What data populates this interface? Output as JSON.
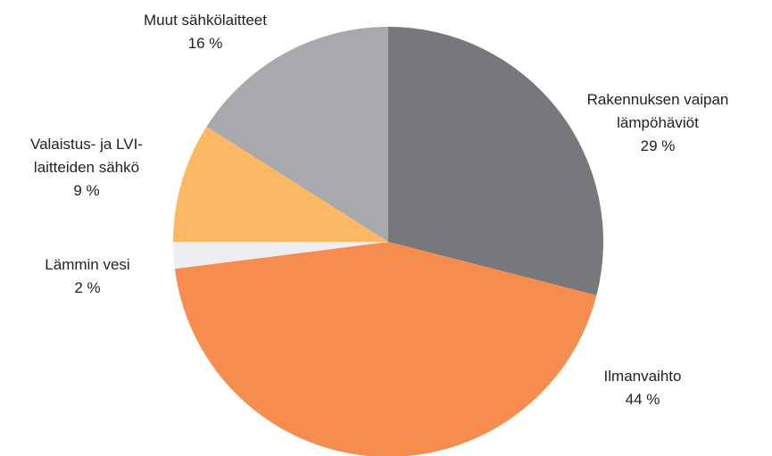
{
  "chart_data": {
    "type": "pie",
    "categories": [
      "Rakennuksen vaipan lämpöhäviöt",
      "Ilmanvaihto",
      "Lämmin vesi",
      "Valaistus- ja LVI-laitteiden sähkö",
      "Muut sähkölaitteet"
    ],
    "values": [
      29,
      44,
      2,
      9,
      16
    ],
    "value_labels": [
      "29 %",
      "44 %",
      "2 %",
      "9 %",
      "16 %"
    ],
    "colors": [
      "#77787b",
      "#f68d4e",
      "#eceef2",
      "#fdb863",
      "#a7a9ac"
    ]
  }
}
